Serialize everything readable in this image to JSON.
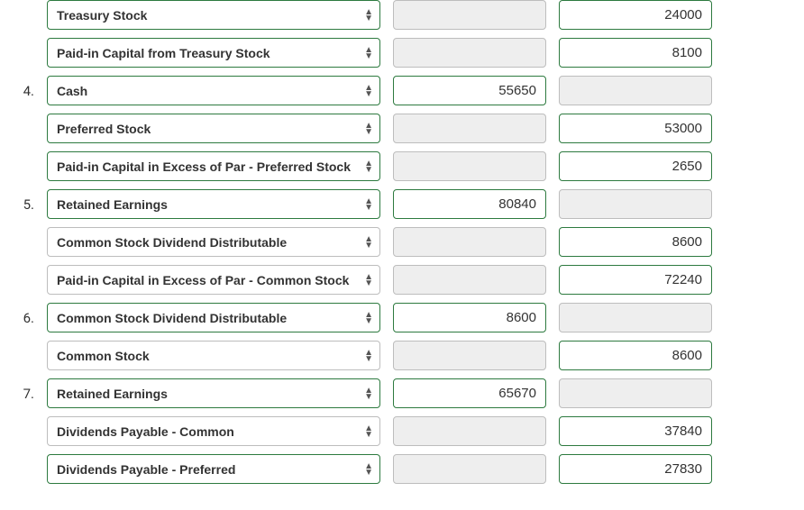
{
  "colors": {
    "active_border": "#2d7a3f",
    "inactive_border": "#bdbdbd",
    "disabled_bg": "#eeeeee",
    "active_bg": "#ffffff"
  },
  "rows": [
    {
      "num": "",
      "account": "Treasury Stock",
      "select_state": "green",
      "debit": "",
      "debit_state": "gray",
      "credit": "24000",
      "credit_state": "green"
    },
    {
      "num": "",
      "account": "Paid-in Capital from Treasury Stock",
      "select_state": "green",
      "debit": "",
      "debit_state": "gray",
      "credit": "8100",
      "credit_state": "green"
    },
    {
      "num": "4.",
      "account": "Cash",
      "select_state": "green",
      "debit": "55650",
      "debit_state": "green",
      "credit": "",
      "credit_state": "gray"
    },
    {
      "num": "",
      "account": "Preferred Stock",
      "select_state": "green",
      "debit": "",
      "debit_state": "gray",
      "credit": "53000",
      "credit_state": "green"
    },
    {
      "num": "",
      "account": "Paid-in Capital in Excess of Par - Preferred Stock",
      "select_state": "green",
      "debit": "",
      "debit_state": "gray",
      "credit": "2650",
      "credit_state": "green"
    },
    {
      "num": "5.",
      "account": "Retained Earnings",
      "select_state": "green",
      "debit": "80840",
      "debit_state": "green",
      "credit": "",
      "credit_state": "gray"
    },
    {
      "num": "",
      "account": "Common Stock Dividend Distributable",
      "select_state": "gray",
      "debit": "",
      "debit_state": "gray",
      "credit": "8600",
      "credit_state": "green"
    },
    {
      "num": "",
      "account": "Paid-in Capital in Excess of Par - Common Stock",
      "select_state": "gray",
      "debit": "",
      "debit_state": "gray",
      "credit": "72240",
      "credit_state": "green"
    },
    {
      "num": "6.",
      "account": "Common Stock Dividend Distributable",
      "select_state": "green",
      "debit": "8600",
      "debit_state": "green",
      "credit": "",
      "credit_state": "gray"
    },
    {
      "num": "",
      "account": "Common Stock",
      "select_state": "gray",
      "debit": "",
      "debit_state": "gray",
      "credit": "8600",
      "credit_state": "green"
    },
    {
      "num": "7.",
      "account": "Retained Earnings",
      "select_state": "green",
      "debit": "65670",
      "debit_state": "green",
      "credit": "",
      "credit_state": "gray"
    },
    {
      "num": "",
      "account": "Dividends Payable - Common",
      "select_state": "gray",
      "debit": "",
      "debit_state": "gray",
      "credit": "37840",
      "credit_state": "green"
    },
    {
      "num": "",
      "account": "Dividends Payable - Preferred",
      "select_state": "green",
      "debit": "",
      "debit_state": "gray",
      "credit": "27830",
      "credit_state": "green"
    }
  ]
}
